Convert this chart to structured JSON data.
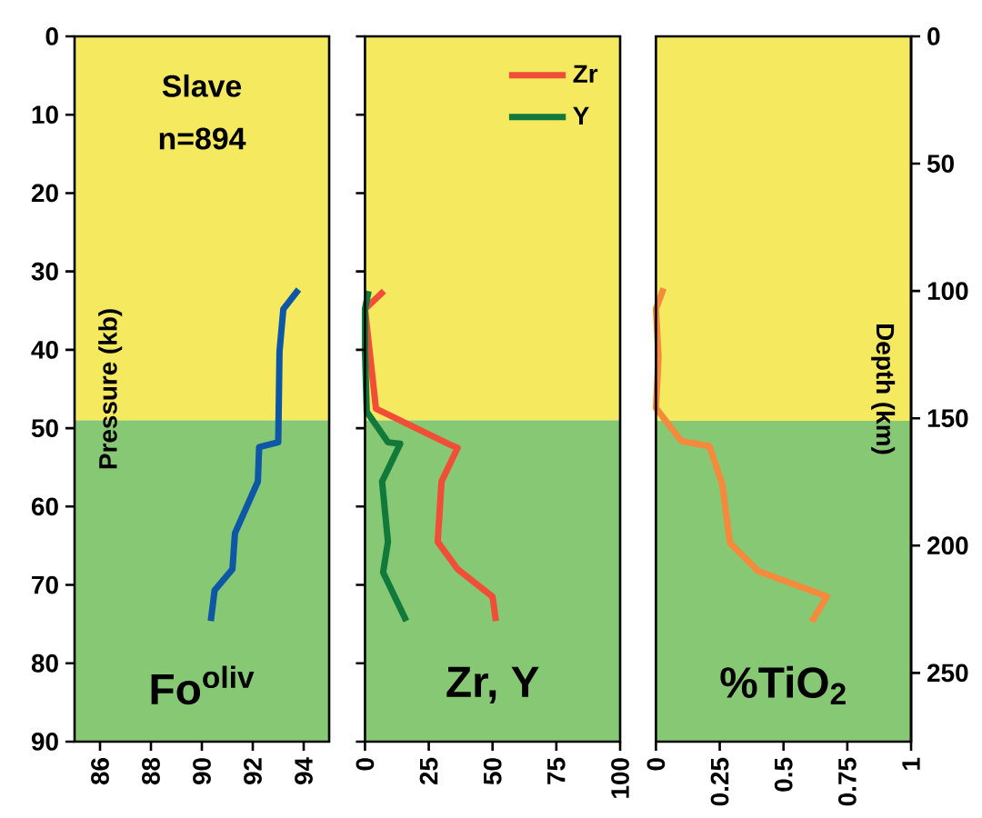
{
  "chart_data": [
    {
      "type": "line",
      "xlabel": "Fo$^{oliv}$",
      "ylabel": "Pressure (kb)",
      "annotations": [
        "Slave",
        "n=894"
      ],
      "xlim": [
        85,
        95
      ],
      "xticks": [
        86,
        88,
        90,
        92,
        94
      ],
      "ylim": [
        90,
        0
      ],
      "yticks": [
        0,
        10,
        20,
        30,
        40,
        50,
        60,
        70,
        80,
        90
      ],
      "bands": [
        {
          "axis": "y",
          "from": 0,
          "to": 49,
          "color": "#f5e960"
        },
        {
          "axis": "y",
          "from": 49,
          "to": 90,
          "color": "#86c873"
        }
      ],
      "series": [
        {
          "color": "#0d57a6",
          "x": [
            93.8,
            93.2,
            93.05,
            93.0,
            92.25,
            92.2,
            91.3,
            91.2,
            90.5,
            90.35
          ],
          "values": [
            32.3,
            34.8,
            40.2,
            51.8,
            52.4,
            56.8,
            63.4,
            68,
            70.7,
            74.6
          ]
        }
      ]
    },
    {
      "type": "line",
      "xlabel": "Zr, Y",
      "xlim": [
        0,
        100
      ],
      "xticks": [
        0,
        25,
        50,
        75,
        100
      ],
      "ylim": [
        90,
        0
      ],
      "yticks": [
        0,
        10,
        20,
        30,
        40,
        50,
        60,
        70,
        80,
        90
      ],
      "tick_labels": "x",
      "legend": "top right",
      "bands": [
        {
          "axis": "y",
          "from": 0,
          "to": 49,
          "color": "#f5e960"
        },
        {
          "axis": "y",
          "from": 49,
          "to": 90,
          "color": "#86c873"
        }
      ],
      "series": [
        {
          "name": "Zr",
          "color": "#f04e37",
          "x": [
            7.4,
            0,
            4.3,
            34,
            36.3,
            30,
            28.5,
            36.3,
            50,
            51.3
          ],
          "values": [
            32.5,
            34.8,
            47.5,
            52.2,
            52.5,
            56.8,
            64.5,
            68,
            71.5,
            74.6
          ]
        },
        {
          "name": "Y",
          "color": "#117a3b",
          "x": [
            1.4,
            0,
            0,
            0.7,
            9,
            13.8,
            6.7,
            9,
            7.1,
            16.2
          ],
          "values": [
            32.5,
            34.8,
            40.2,
            47.9,
            51.8,
            52,
            56.8,
            64.5,
            68.4,
            74.6
          ]
        }
      ]
    },
    {
      "type": "line",
      "xlabel": "%TiO$_{2}$",
      "y2label": "Depth (km)",
      "xlim": [
        0,
        1
      ],
      "xticks": [
        0,
        0.25,
        0.5,
        0.75,
        1
      ],
      "y2lim": [
        277,
        0
      ],
      "y2ticks": [
        0,
        50,
        100,
        150,
        200,
        250
      ],
      "bands": [
        {
          "axis": "y2",
          "from": 0,
          "to": 151,
          "color": "#f5e960"
        },
        {
          "axis": "y2",
          "from": 151,
          "to": 277,
          "color": "#86c873"
        }
      ],
      "series": [
        {
          "axis": "y2",
          "color": "#f58a3d",
          "x": [
            0.03,
            0,
            0.01,
            0,
            0.1,
            0.21,
            0.26,
            0.29,
            0.4,
            0.67,
            0.61
          ],
          "values": [
            99,
            107,
            126,
            146,
            159,
            161,
            176,
            199,
            210,
            220,
            230
          ]
        }
      ]
    }
  ]
}
